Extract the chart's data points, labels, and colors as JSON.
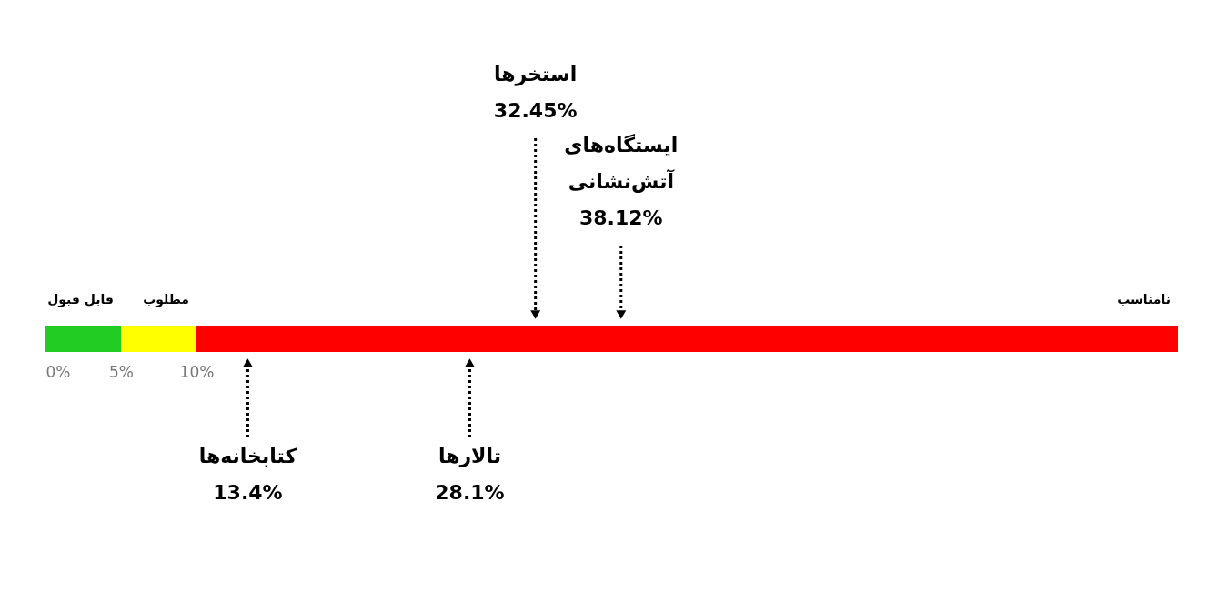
{
  "chart_data": {
    "type": "bar",
    "orientation": "horizontal",
    "stacked": true,
    "categories": [
      null
    ],
    "series": [
      {
        "name": "قابل قبول",
        "color": "#22cc22",
        "values": [
          5
        ]
      },
      {
        "name": "مطلوب",
        "color": "#ffff00",
        "values": [
          5
        ]
      },
      {
        "name": "نامناسب",
        "color": "#ff0000",
        "values": [
          65
        ]
      }
    ],
    "xlim": [
      0,
      75
    ],
    "xticks": [
      {
        "value": 0,
        "label": "0%"
      },
      {
        "value": 5,
        "label": "5%"
      },
      {
        "value": 10,
        "label": "10%"
      }
    ],
    "legend": false,
    "ref_lines": [
      {
        "axis": "x",
        "value": 13.4,
        "label": "کتابخانه‌ها\n13.4%",
        "color": "#000000",
        "line_style": "dotted"
      },
      {
        "axis": "x",
        "value": 32.45,
        "label": "استخرها\n32.45%",
        "color": "#000000",
        "line_style": "dotted"
      },
      {
        "axis": "x",
        "value": 28.1,
        "label": "تالارها\n28.1%",
        "color": "#000000",
        "line_style": "dotted"
      },
      {
        "axis": "x",
        "value": 38.12,
        "label": "ایستگاه‌های\nآتش‌نشانی\n38.12%",
        "color": "#000000",
        "line_style": "dotted"
      }
    ]
  }
}
